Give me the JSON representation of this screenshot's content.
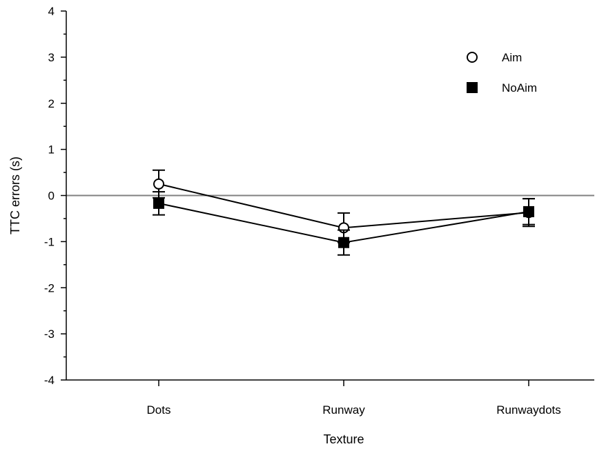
{
  "chart_data": {
    "type": "line",
    "title": "",
    "xlabel": "Texture",
    "ylabel": "TTC errors (s)",
    "categories": [
      "Dots",
      "Runway",
      "Runwaydots"
    ],
    "ylim": [
      -4,
      4
    ],
    "yticks": [
      "-4",
      "-3",
      "-2",
      "-1",
      "0",
      "1",
      "2",
      "3",
      "4"
    ],
    "reference_line": {
      "y": 0,
      "color": "#808080"
    },
    "grid": false,
    "legend_position": "top-right",
    "series": [
      {
        "name": "Aim",
        "marker": "open-circle",
        "values": [
          0.25,
          -0.7,
          -0.37
        ],
        "errors": [
          0.3,
          0.32,
          0.3
        ]
      },
      {
        "name": "NoAim",
        "marker": "filled-square",
        "values": [
          -0.17,
          -1.02,
          -0.35
        ],
        "errors": [
          0.25,
          0.27,
          0.28
        ]
      }
    ]
  }
}
